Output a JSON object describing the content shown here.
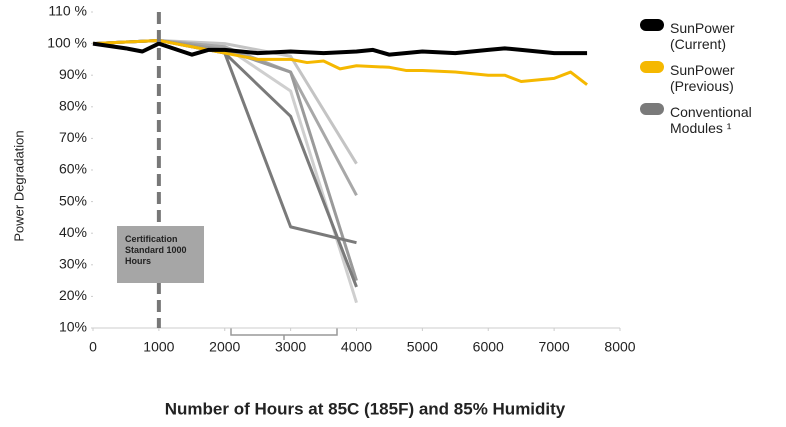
{
  "chart_data": {
    "type": "line",
    "xlabel": "Number of Hours at 85C (185F) and 85% Humidity",
    "ylabel": "Power Degradation",
    "xlim": [
      0,
      8000
    ],
    "xticks": [
      0,
      1000,
      2000,
      3000,
      4000,
      5000,
      6000,
      7000,
      8000
    ],
    "ylim": [
      10,
      110
    ],
    "yticks": [
      {
        "value": 10,
        "label": "10%"
      },
      {
        "value": 20,
        "label": "20%"
      },
      {
        "value": 30,
        "label": "30%"
      },
      {
        "value": 40,
        "label": "40%"
      },
      {
        "value": 50,
        "label": "50%"
      },
      {
        "value": 60,
        "label": "60%"
      },
      {
        "value": 70,
        "label": "70%"
      },
      {
        "value": 80,
        "label": "80%"
      },
      {
        "value": 90,
        "label": "90%"
      },
      {
        "value": 100,
        "label": "100 %"
      },
      {
        "value": 110,
        "label": "110 %"
      }
    ],
    "annotation": {
      "text": "Certification Standard 1000 Hours",
      "x": 1000
    },
    "legend": "right",
    "series": [
      {
        "name": "SunPower (Current)",
        "color": "#000000",
        "x": [
          0,
          500,
          750,
          1000,
          1500,
          1750,
          2000,
          2500,
          3000,
          3500,
          4000,
          4250,
          4500,
          5000,
          5500,
          6000,
          6250,
          6500,
          7000,
          7500
        ],
        "values": [
          100,
          98.5,
          97.5,
          100,
          96.5,
          98,
          98,
          97,
          97.5,
          97,
          97.5,
          98,
          96.5,
          97.5,
          97,
          98,
          98.5,
          98,
          97,
          97
        ]
      },
      {
        "name": "SunPower (Previous)",
        "color": "#f5b800",
        "x": [
          0,
          1000,
          1500,
          2000,
          2500,
          3000,
          3250,
          3500,
          3750,
          4000,
          4500,
          4750,
          5000,
          5500,
          6000,
          6250,
          6500,
          7000,
          7250,
          7500
        ],
        "values": [
          100,
          101,
          99,
          97,
          95,
          95,
          94,
          94.5,
          92,
          93,
          92.5,
          91.5,
          91.5,
          91,
          90,
          90,
          88,
          89,
          91,
          87
        ]
      },
      {
        "name": "Conventional Modules ¹",
        "color": "#7a7a7a",
        "x": [
          0,
          1000,
          2000,
          3000,
          4000
        ],
        "values": [
          100,
          101,
          97,
          42,
          37
        ]
      },
      {
        "color": "#7a7a7a",
        "x": [
          0,
          1000,
          2000,
          3000,
          4000
        ],
        "values": [
          100,
          101,
          97,
          77,
          23
        ]
      },
      {
        "color": "#9a9a9a",
        "x": [
          0,
          1000,
          2000,
          3000,
          4000
        ],
        "values": [
          100,
          101,
          98,
          91,
          25
        ]
      },
      {
        "color": "#a8a8a8",
        "x": [
          0,
          1000,
          2000,
          3000,
          4000
        ],
        "values": [
          100,
          101,
          99,
          91,
          52
        ]
      },
      {
        "color": "#cfcfcf",
        "x": [
          0,
          1000,
          2000,
          3000,
          4000
        ],
        "values": [
          100,
          101,
          99,
          85,
          18
        ]
      },
      {
        "color": "#c4c4c4",
        "x": [
          0,
          1000,
          2000,
          3000,
          4000
        ],
        "values": [
          100,
          101,
          100,
          96,
          62
        ]
      }
    ]
  }
}
